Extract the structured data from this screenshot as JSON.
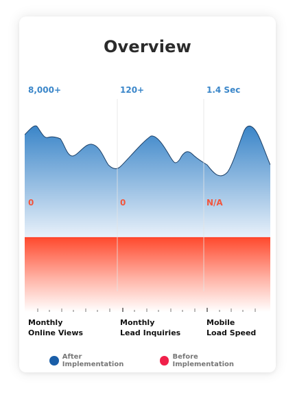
{
  "header": {
    "title": "Overview"
  },
  "columns": [
    {
      "after_value": "8,000+",
      "before_value": "0",
      "label_line1": "Monthly",
      "label_line2": "Online Views"
    },
    {
      "after_value": "120+",
      "before_value": "0",
      "label_line1": "Monthly",
      "label_line2": "Lead Inquiries"
    },
    {
      "after_value": "1.4 Sec",
      "before_value": "N/A",
      "label_line1": "Mobile",
      "label_line2": "Load Speed"
    }
  ],
  "legend": {
    "after": {
      "label": "After Implementation",
      "color": "#1a5ea8"
    },
    "before": {
      "label": "Before Implementation",
      "color": "#f0204a"
    }
  },
  "colors": {
    "after_value_text": "#3a86c9",
    "before_value_text": "#f2553c",
    "area_top": "#3a85c8",
    "area_bottom": "#e8f1fa",
    "red_top": "#ff4a2e"
  }
}
